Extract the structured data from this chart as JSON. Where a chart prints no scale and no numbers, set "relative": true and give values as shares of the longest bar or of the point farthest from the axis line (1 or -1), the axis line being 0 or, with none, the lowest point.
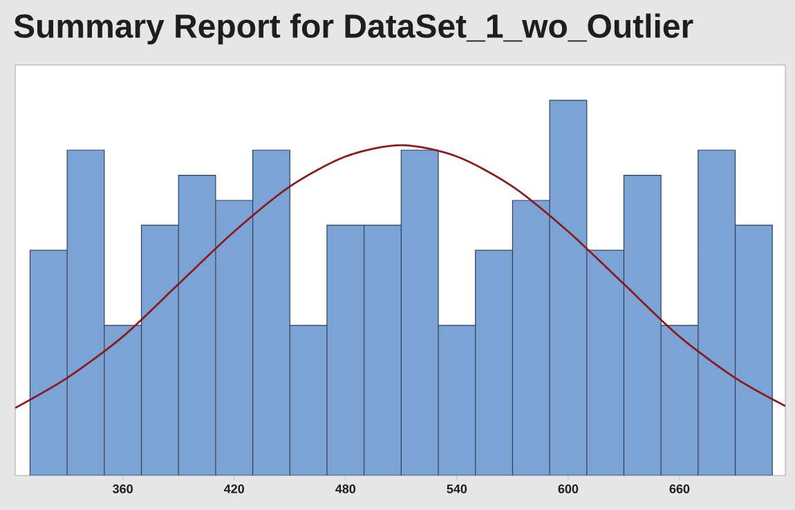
{
  "chart_data": {
    "type": "histogram",
    "title": "Summary Report for DataSet_1_wo_Outlier",
    "relative": true,
    "xlim": [
      302,
      717
    ],
    "xticks": [
      360,
      420,
      480,
      540,
      600,
      660
    ],
    "tick_labels": "x",
    "grid": false,
    "series": [
      {
        "type": "histogram",
        "color": "#7ba3d6",
        "bins": [
          310,
          330,
          350,
          370,
          390,
          410,
          430,
          450,
          470,
          490,
          510,
          530,
          550,
          570,
          590,
          610,
          630,
          650,
          670,
          690,
          710
        ],
        "values": [
          0.6,
          0.867,
          0.4,
          0.667,
          0.8,
          0.733,
          0.867,
          0.4,
          0.667,
          0.667,
          0.867,
          0.4,
          0.6,
          0.733,
          1,
          0.6,
          0.8,
          0.4,
          0.867,
          0.667
        ]
      },
      {
        "type": "line",
        "color": "#8b1a1a",
        "x": [
          302,
          330,
          360,
          390,
          420,
          450,
          480,
          510,
          540,
          570,
          600,
          630,
          660,
          690,
          717
        ],
        "values": [
          0.18,
          0.26,
          0.37,
          0.51,
          0.65,
          0.77,
          0.85,
          0.88,
          0.85,
          0.77,
          0.65,
          0.51,
          0.37,
          0.26,
          0.185
        ]
      }
    ]
  }
}
